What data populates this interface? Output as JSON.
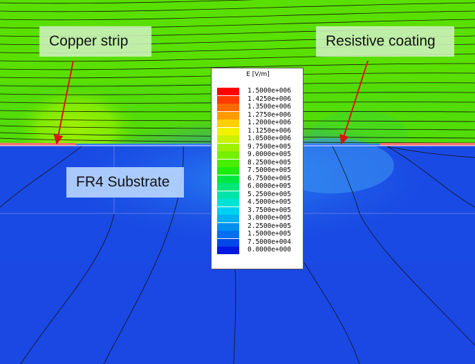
{
  "callouts": {
    "copper": "Copper strip",
    "coating": "Resistive coating",
    "substrate": "FR4 Substrate"
  },
  "legend": {
    "title": "E [V/m]",
    "entries": [
      {
        "value": "1.5000e+006",
        "color": "#ff0000"
      },
      {
        "value": "1.4250e+006",
        "color": "#ff3a00"
      },
      {
        "value": "1.3500e+006",
        "color": "#ff6a00"
      },
      {
        "value": "1.2750e+006",
        "color": "#ff9a00"
      },
      {
        "value": "1.2000e+006",
        "color": "#ffcf00"
      },
      {
        "value": "1.1250e+006",
        "color": "#f2f200"
      },
      {
        "value": "1.0500e+006",
        "color": "#c8f200"
      },
      {
        "value": "9.7500e+005",
        "color": "#9ef200"
      },
      {
        "value": "9.0000e+005",
        "color": "#74f000"
      },
      {
        "value": "8.2500e+005",
        "color": "#48ee00"
      },
      {
        "value": "7.5000e+005",
        "color": "#1eec10"
      },
      {
        "value": "6.7500e+005",
        "color": "#00e840"
      },
      {
        "value": "6.0000e+005",
        "color": "#00e678"
      },
      {
        "value": "5.2500e+005",
        "color": "#00e4aa"
      },
      {
        "value": "4.5000e+005",
        "color": "#00e2d6"
      },
      {
        "value": "3.7500e+005",
        "color": "#00d0f0"
      },
      {
        "value": "3.0000e+005",
        "color": "#00b0f0"
      },
      {
        "value": "2.2500e+005",
        "color": "#0090f0"
      },
      {
        "value": "1.5000e+005",
        "color": "#0070f0"
      },
      {
        "value": "7.5000e+004",
        "color": "#0048e8"
      },
      {
        "value": "0.0000e+000",
        "color": "#0018e0"
      }
    ]
  },
  "colors": {
    "air_field": "#5ae000",
    "substrate_field": "#1848e0",
    "arrow": "#e01010",
    "strip": "#ff6060"
  }
}
